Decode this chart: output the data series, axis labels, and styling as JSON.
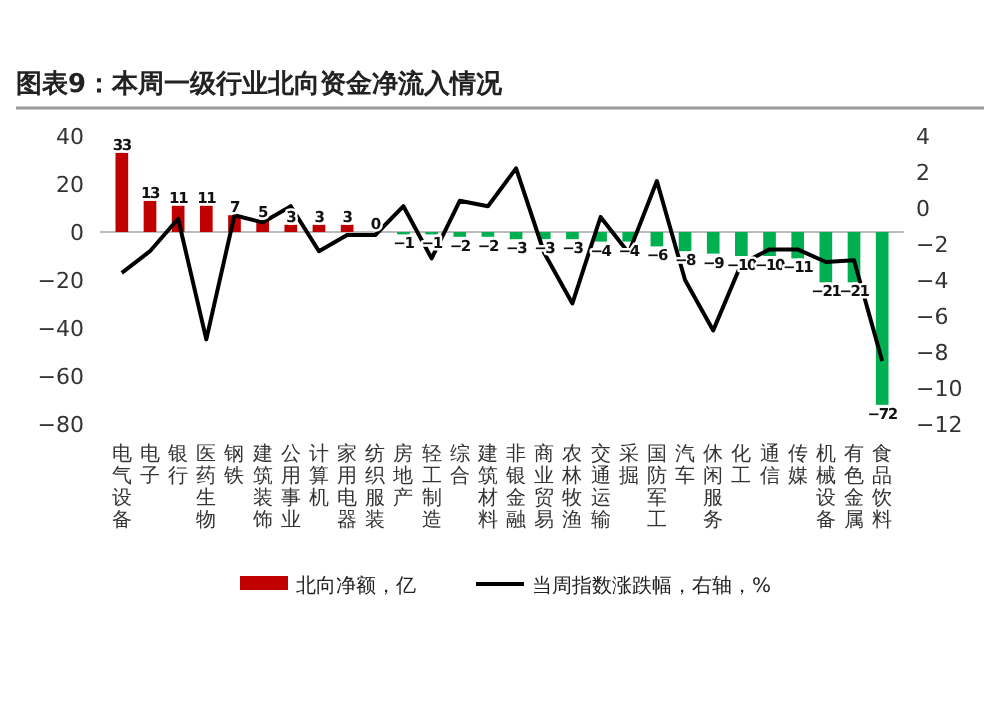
{
  "chart_data": {
    "type": "bar",
    "title": "图表9：本周一级行业北向资金净流入情况",
    "categories": [
      "电气设备",
      "电子",
      "银行",
      "医药生物",
      "钢铁",
      "建筑装饰",
      "公用事业",
      "计算机",
      "家用电器",
      "纺织服装",
      "房地产",
      "轻工制造",
      "综合",
      "建筑材料",
      "非银金融",
      "商业贸易",
      "农林牧渔",
      "交通运输",
      "采掘",
      "国防军工",
      "汽车",
      "休闲服务",
      "化工",
      "通信",
      "传媒",
      "机械设备",
      "有色金属",
      "食品饮料"
    ],
    "series": [
      {
        "name": "北向净额，亿",
        "color": "#c00000",
        "value_labels": [
          "33",
          "13",
          "11",
          "11",
          "7",
          "5",
          "3",
          "3",
          "3",
          "0",
          "−1",
          "−1",
          "−2",
          "−2",
          "−3",
          "−3",
          "−3",
          "−4",
          "−4",
          "−6",
          "−8",
          "−9",
          "−10",
          "−10",
          "−11",
          "−21",
          "−21",
          "−72"
        ],
        "colors": [
          "#c00000",
          "#c00000",
          "#c00000",
          "#c00000",
          "#c00000",
          "#c00000",
          "#c00000",
          "#c00000",
          "#c00000",
          "#c00000",
          "#00b050",
          "#00b050",
          "#00b050",
          "#00b050",
          "#00b050",
          "#00b050",
          "#00b050",
          "#00b050",
          "#00b050",
          "#00b050",
          "#00b050",
          "#00b050",
          "#00b050",
          "#00b050",
          "#00b050",
          "#00b050",
          "#00b050",
          "#00b050"
        ],
        "values": [
          33,
          13,
          11,
          11,
          7,
          5,
          3,
          3,
          3,
          0,
          -1,
          -1,
          -2,
          -2,
          -3,
          -3,
          -3,
          -4,
          -4,
          -6,
          -8,
          -9,
          -10,
          -10,
          -11,
          -21,
          -21,
          -72
        ]
      },
      {
        "name": "当周指数涨跌幅，右轴，%",
        "type": "line",
        "axis": "y2",
        "color": "#000000",
        "values": [
          -3.6,
          -2.4,
          -0.6,
          -7.3,
          -0.4,
          -0.8,
          0.1,
          -2.4,
          -1.5,
          -1.5,
          0.1,
          -2.8,
          0.4,
          0.1,
          2.2,
          -2.5,
          -5.3,
          -0.5,
          -2.5,
          1.5,
          -4.0,
          -6.8,
          -3.1,
          -2.3,
          -2.3,
          -3.0,
          -2.9,
          -8.5
        ]
      }
    ],
    "ylim": [
      -80,
      40
    ],
    "yticks": [
      -80,
      -60,
      -40,
      -20,
      0,
      20,
      40
    ],
    "y2lim": [
      -12,
      4
    ],
    "y2ticks": [
      -12,
      -10,
      -8,
      -6,
      -4,
      -2,
      0,
      2,
      4
    ],
    "legend": "bottom",
    "marker": "none",
    "line_style": "solid"
  }
}
